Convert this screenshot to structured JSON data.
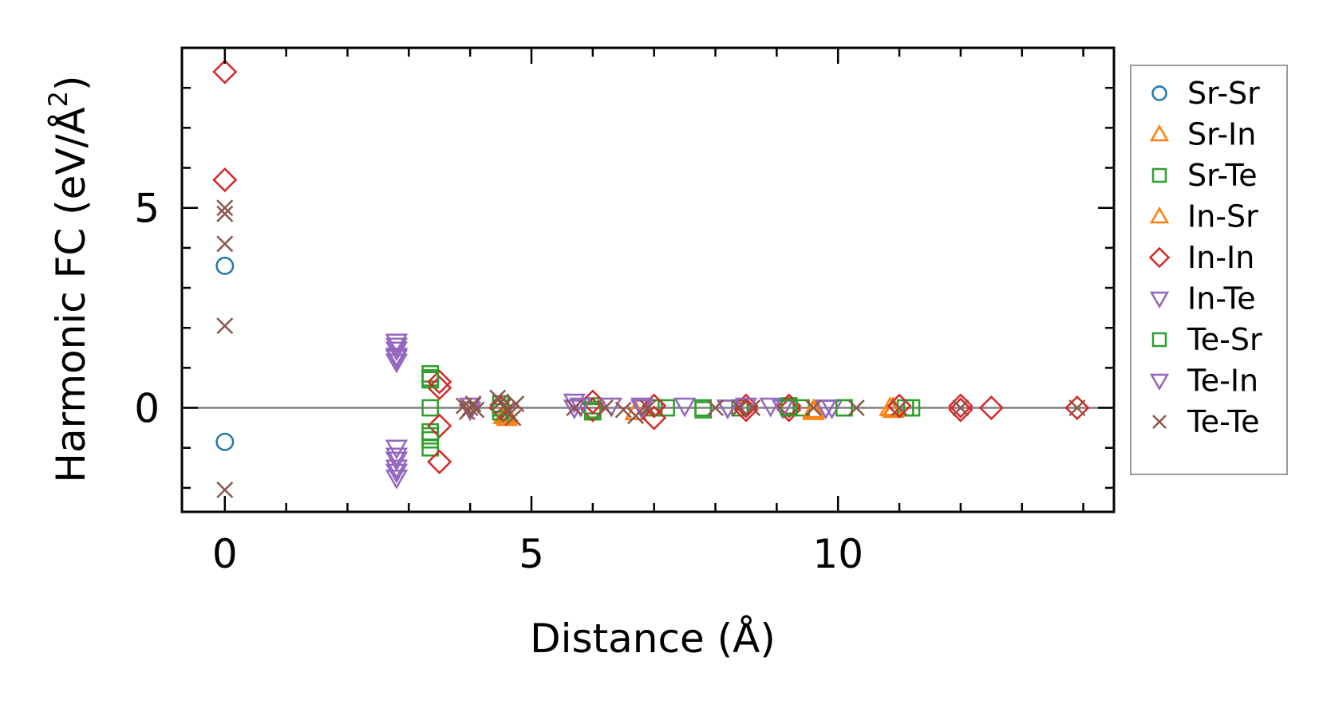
{
  "chart_data": {
    "type": "scatter",
    "xlabel": "Distance (Å)",
    "ylabel": {
      "main": "Harmonic FC (eV/Å",
      "superscript": "2",
      "close": ")"
    },
    "xlim": [
      -0.7,
      14.5
    ],
    "ylim": [
      -2.6,
      9.0
    ],
    "x_ticks": [
      0,
      5,
      10
    ],
    "x_tick_labels": [
      "0",
      "5",
      "10"
    ],
    "y_ticks": [
      0,
      5
    ],
    "y_tick_labels": [
      "0",
      "5"
    ],
    "grid": false,
    "zero_line": true,
    "legend_position": "outside-right",
    "series": [
      {
        "name": "Sr-Sr",
        "marker": "circle",
        "color": "#1f77b4",
        "x": [
          0,
          0
        ],
        "y": [
          3.55,
          -0.85
        ]
      },
      {
        "name": "Sr-In",
        "marker": "triangle-up",
        "color": "#ff7f0e",
        "x": [
          4.55,
          4.6,
          6.7,
          9.6,
          10.85,
          10.9
        ],
        "y": [
          -0.2,
          -0.15,
          -0.1,
          -0.1,
          0.0,
          -0.05
        ]
      },
      {
        "name": "Sr-Te",
        "marker": "square",
        "color": "#2ca02c",
        "x": [
          3.35,
          3.35,
          3.35,
          3.35,
          3.35,
          3.35,
          4.5,
          4.5,
          6.0,
          6.0,
          7.0,
          7.2,
          7.8,
          8.4,
          9.2,
          9.4,
          10.1,
          11.1,
          11.2
        ],
        "y": [
          0.85,
          0.75,
          0.0,
          -0.6,
          -0.8,
          -1.0,
          0.1,
          -0.1,
          0.05,
          -0.1,
          0.0,
          0.0,
          -0.05,
          0.0,
          0.05,
          0.0,
          0.0,
          0.0,
          0.0
        ]
      },
      {
        "name": "In-Sr",
        "marker": "triangle-up",
        "color": "#ff7f0e",
        "x": [
          4.6,
          6.7,
          9.6,
          10.9
        ],
        "y": [
          -0.25,
          -0.1,
          -0.05,
          0.0
        ]
      },
      {
        "name": "In-In",
        "marker": "diamond",
        "color": "#d62728",
        "x": [
          0,
          0,
          3.5,
          3.5,
          3.5,
          3.5,
          4.5,
          6.0,
          6.0,
          7.0,
          7.0,
          8.5,
          8.5,
          9.2,
          9.2,
          11.0,
          12.0,
          12.0,
          12.5,
          13.9
        ],
        "y": [
          8.4,
          5.7,
          0.65,
          0.5,
          -0.45,
          -1.35,
          0.0,
          0.15,
          -0.05,
          0.05,
          -0.25,
          0.05,
          -0.05,
          0.05,
          -0.05,
          0.05,
          0.05,
          -0.05,
          0.0,
          0.0
        ],
        "open_marker": true
      },
      {
        "name": "In-Te",
        "marker": "triangle-down",
        "color": "#9467bd",
        "x": [
          2.8,
          2.8,
          2.8,
          2.8,
          2.8,
          2.8,
          2.8,
          2.8,
          4.0,
          4.0,
          5.7,
          5.7,
          6.3,
          6.8,
          7.5,
          8.2,
          8.5,
          8.9,
          9.1,
          9.8,
          9.9
        ],
        "y": [
          1.65,
          1.45,
          1.3,
          1.15,
          -1.0,
          -1.3,
          -1.5,
          -1.75,
          0.05,
          -0.05,
          0.15,
          0.0,
          0.05,
          0.05,
          0.05,
          0.0,
          0.05,
          0.05,
          0.0,
          0.0,
          0.0
        ]
      },
      {
        "name": "Te-Sr",
        "marker": "square",
        "color": "#2ca02c",
        "x": [
          3.35,
          3.35,
          4.5,
          6.0,
          7.8,
          9.2,
          10.1
        ],
        "y": [
          0.7,
          -0.7,
          0.0,
          -0.05,
          0.0,
          0.0,
          0.0
        ]
      },
      {
        "name": "Te-In",
        "marker": "triangle-down",
        "color": "#9467bd",
        "x": [
          2.8,
          2.8,
          2.8,
          2.8,
          5.8,
          6.8,
          8.2,
          9.8
        ],
        "y": [
          1.55,
          1.25,
          -1.2,
          -1.6,
          0.05,
          0.0,
          0.0,
          0.0
        ]
      },
      {
        "name": "Te-Te",
        "marker": "x",
        "color": "#8c564b",
        "x": [
          0,
          0,
          0,
          0,
          0,
          3.9,
          3.95,
          4.0,
          4.05,
          4.1,
          4.45,
          4.5,
          4.55,
          4.6,
          4.65,
          4.7,
          4.75,
          5.7,
          6.2,
          6.5,
          6.7,
          6.9,
          8.0,
          8.4,
          8.6,
          9.6,
          10.3,
          11.0,
          12.0,
          13.9
        ],
        "y": [
          5.0,
          4.85,
          4.1,
          2.05,
          -2.05,
          0.05,
          -0.1,
          0.0,
          0.1,
          -0.05,
          0.25,
          0.15,
          0.05,
          -0.05,
          -0.15,
          -0.25,
          0.1,
          0.0,
          0.0,
          -0.05,
          -0.2,
          0.0,
          0.0,
          0.0,
          0.0,
          0.0,
          0.0,
          0.0,
          0.0,
          0.0
        ]
      }
    ]
  }
}
